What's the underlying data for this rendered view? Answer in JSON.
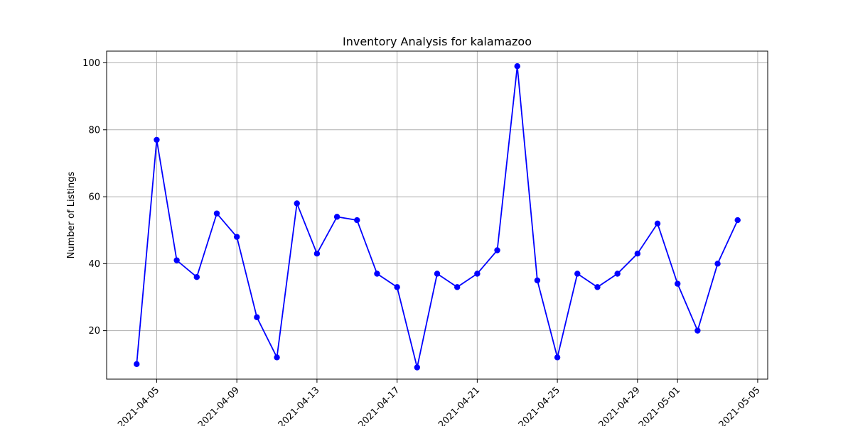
{
  "chart_data": {
    "type": "line",
    "title": "Inventory Analysis for kalamazoo",
    "xlabel": "",
    "ylabel": "Number of Listings",
    "x": [
      "2021-04-04",
      "2021-04-05",
      "2021-04-06",
      "2021-04-07",
      "2021-04-08",
      "2021-04-09",
      "2021-04-10",
      "2021-04-11",
      "2021-04-12",
      "2021-04-13",
      "2021-04-14",
      "2021-04-15",
      "2021-04-16",
      "2021-04-17",
      "2021-04-18",
      "2021-04-19",
      "2021-04-20",
      "2021-04-21",
      "2021-04-22",
      "2021-04-23",
      "2021-04-24",
      "2021-04-25",
      "2021-04-26",
      "2021-04-27",
      "2021-04-28",
      "2021-04-29",
      "2021-04-30",
      "2021-05-01",
      "2021-05-02",
      "2021-05-03",
      "2021-05-04"
    ],
    "series": [
      {
        "values": [
          10,
          77,
          41,
          36,
          55,
          48,
          24,
          12,
          58,
          43,
          54,
          53,
          37,
          33,
          9,
          37,
          33,
          37,
          44,
          99,
          35,
          12,
          37,
          33,
          37,
          43,
          52,
          34,
          20,
          40,
          53
        ],
        "color": "#0000ff"
      }
    ],
    "xticks": [
      "2021-04-05",
      "2021-04-09",
      "2021-04-13",
      "2021-04-17",
      "2021-04-21",
      "2021-04-25",
      "2021-04-29",
      "2021-05-01",
      "2021-05-05"
    ],
    "yticks": [
      20,
      40,
      60,
      80,
      100
    ],
    "xlim": [
      "2021-04-02 12:00",
      "2021-05-05 12:00"
    ],
    "ylim": [
      5.5,
      103.5
    ],
    "grid": true
  }
}
